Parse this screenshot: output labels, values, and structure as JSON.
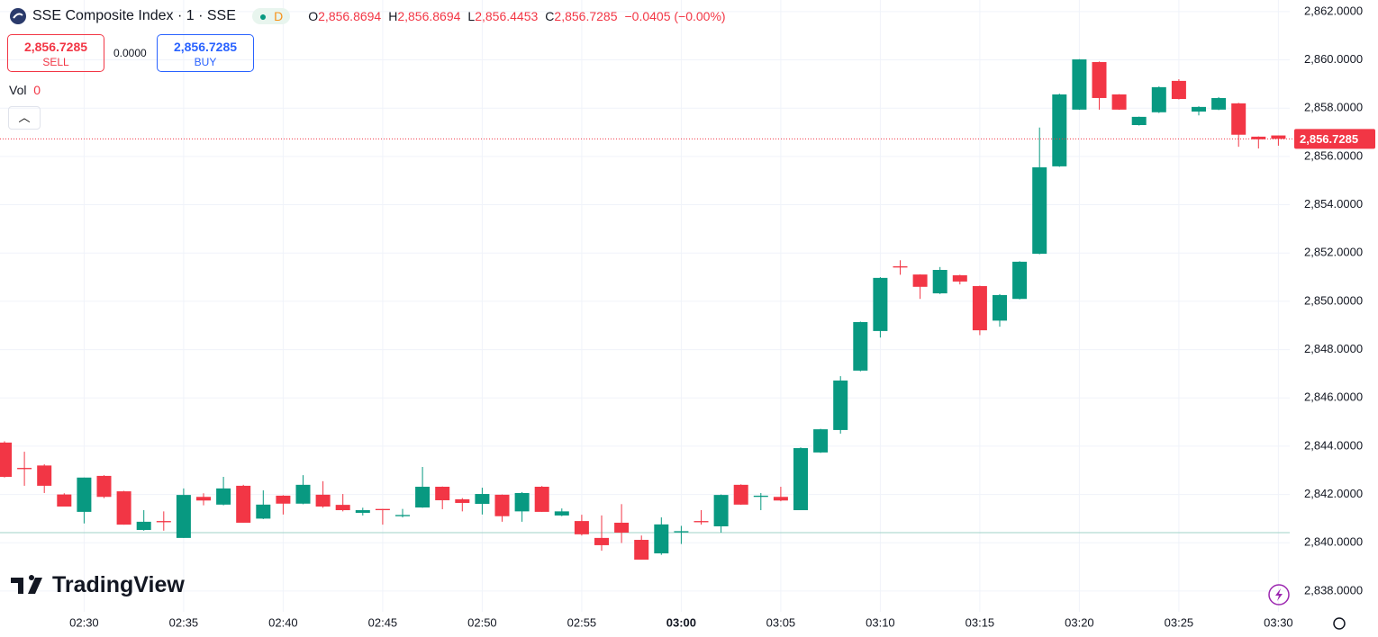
{
  "header": {
    "symbol": "SSE Composite Index · 1 · SSE",
    "badge": "D",
    "ohlc": [
      {
        "label": "O",
        "value": "2,856.8694"
      },
      {
        "label": "H",
        "value": "2,856.8694"
      },
      {
        "label": "L",
        "value": "2,856.4453"
      },
      {
        "label": "C",
        "value": "2,856.7285"
      }
    ],
    "change": "−0.0405 (−0.00%)"
  },
  "trade": {
    "sell_price": "2,856.7285",
    "sell": "SELL",
    "spread": "0.0000",
    "buy_price": "2,856.7285",
    "buy": "BUY"
  },
  "volume": {
    "label": "Vol",
    "value": "0"
  },
  "brand": "TradingView",
  "chart_data": {
    "type": "candlestick",
    "categories": [
      null,
      null,
      null,
      null,
      "02:30",
      null,
      null,
      null,
      null,
      "02:35",
      null,
      null,
      null,
      null,
      "02:40",
      null,
      null,
      null,
      null,
      "02:45",
      null,
      null,
      null,
      null,
      "02:50",
      null,
      null,
      null,
      null,
      "02:55",
      null,
      null,
      null,
      null,
      "03:00",
      null,
      null,
      null,
      null,
      "03:05",
      null,
      null,
      null,
      null,
      "03:10",
      null,
      null,
      null,
      null,
      "03:15",
      null,
      null,
      null,
      null,
      "03:20",
      null,
      null,
      null,
      null,
      "03:25",
      null,
      null,
      null,
      null,
      "03:30"
    ],
    "open": [
      2844.15,
      2843.1,
      2843.2,
      2842.0,
      2841.28,
      2842.77,
      2842.13,
      2840.53,
      2840.9,
      2840.2,
      2841.9,
      2841.58,
      2842.36,
      2841.0,
      2841.95,
      2841.62,
      2841.99,
      2841.57,
      2841.24,
      2841.4,
      2841.1,
      2841.46,
      2842.32,
      2841.8,
      2841.61,
      2841.99,
      2841.3,
      2842.32,
      2841.13,
      2840.9,
      2840.2,
      2840.83,
      2840.12,
      2839.56,
      2840.43,
      2840.9,
      2840.68,
      2842.4,
      2841.9,
      2841.9,
      2841.35,
      2843.74,
      2844.67,
      2847.13,
      2848.77,
      2851.45,
      2851.11,
      2850.33,
      2851.08,
      2850.63,
      2849.2,
      2850.1,
      2851.97,
      2855.59,
      2857.94,
      2859.91,
      2858.57,
      2857.3,
      2857.83,
      2859.13,
      2857.86,
      2857.94,
      2858.2,
      2856.82,
      2856.8694
    ],
    "high": [
      2844.2,
      2843.77,
      2843.25,
      2842.05,
      2842.7,
      2842.8,
      2842.15,
      2841.35,
      2841.3,
      2842.25,
      2842.05,
      2842.73,
      2842.4,
      2842.17,
      2841.97,
      2842.8,
      2842.55,
      2842.02,
      2841.45,
      2841.4,
      2841.4,
      2843.14,
      2842.33,
      2841.85,
      2842.28,
      2842.0,
      2842.1,
      2842.35,
      2841.42,
      2841.16,
      2841.13,
      2841.6,
      2840.3,
      2841.05,
      2840.7,
      2841.35,
      2842.0,
      2842.42,
      2842.06,
      2842.32,
      2843.95,
      2844.72,
      2846.9,
      2849.16,
      2851.0,
      2851.7,
      2851.12,
      2851.42,
      2851.1,
      2850.65,
      2850.3,
      2851.66,
      2857.2,
      2858.6,
      2860.03,
      2859.93,
      2858.58,
      2857.65,
      2858.9,
      2859.2,
      2858.08,
      2858.46,
      2858.22,
      2856.83,
      2856.8694
    ],
    "low": [
      2842.7,
      2842.36,
      2842.06,
      2841.5,
      2840.8,
      2841.85,
      2840.75,
      2840.5,
      2840.5,
      2840.2,
      2841.55,
      2841.55,
      2840.83,
      2840.98,
      2841.17,
      2841.6,
      2841.45,
      2841.3,
      2841.13,
      2840.75,
      2841.05,
      2841.45,
      2841.39,
      2841.3,
      2841.17,
      2840.87,
      2840.87,
      2841.28,
      2841.1,
      2840.3,
      2839.67,
      2839.99,
      2839.3,
      2839.5,
      2839.95,
      2840.75,
      2840.42,
      2841.57,
      2841.35,
      2841.72,
      2841.35,
      2843.72,
      2844.52,
      2847.1,
      2848.5,
      2851.1,
      2850.1,
      2850.3,
      2850.7,
      2848.6,
      2848.95,
      2850.08,
      2851.95,
      2855.57,
      2857.93,
      2857.94,
      2857.93,
      2857.28,
      2857.8,
      2858.36,
      2857.7,
      2857.92,
      2856.4,
      2856.33,
      2856.4453
    ],
    "close": [
      2842.73,
      2843.05,
      2842.36,
      2841.5,
      2842.7,
      2841.9,
      2840.75,
      2840.87,
      2840.85,
      2841.98,
      2841.75,
      2842.25,
      2840.83,
      2841.58,
      2841.62,
      2842.4,
      2841.5,
      2841.35,
      2841.35,
      2841.35,
      2841.15,
      2842.32,
      2841.76,
      2841.65,
      2842.02,
      2841.1,
      2842.06,
      2841.28,
      2841.3,
      2840.35,
      2839.9,
      2840.42,
      2839.3,
      2840.76,
      2840.48,
      2840.85,
      2841.98,
      2841.58,
      2841.95,
      2841.75,
      2843.92,
      2844.7,
      2846.72,
      2849.14,
      2850.97,
      2851.4,
      2850.6,
      2851.3,
      2850.82,
      2848.8,
      2850.26,
      2851.64,
      2855.55,
      2858.57,
      2860.02,
      2858.42,
      2857.94,
      2857.64,
      2858.87,
      2858.38,
      2858.05,
      2858.42,
      2856.9,
      2856.71,
      2856.7285
    ],
    "up_color": "#089981",
    "down_color": "#f23645",
    "ylim": [
      2837.14,
      2862.48
    ],
    "yticks": [
      {
        "value": 2838,
        "label": "2,838.0000"
      },
      {
        "value": 2840,
        "label": "2,840.0000"
      },
      {
        "value": 2842,
        "label": "2,842.0000"
      },
      {
        "value": 2844,
        "label": "2,844.0000"
      },
      {
        "value": 2846,
        "label": "2,846.0000"
      },
      {
        "value": 2848,
        "label": "2,848.0000"
      },
      {
        "value": 2850,
        "label": "2,850.0000"
      },
      {
        "value": 2852,
        "label": "2,852.0000"
      },
      {
        "value": 2854,
        "label": "2,854.0000"
      },
      {
        "value": 2856,
        "label": "2,856.0000"
      },
      {
        "value": 2858,
        "label": "2,858.0000"
      },
      {
        "value": 2860,
        "label": "2,860.0000"
      },
      {
        "value": 2862,
        "label": "2,862.0000"
      }
    ],
    "last_price": 2856.7285,
    "last_price_label": "2,856.7285",
    "reference_line": 2840.42,
    "grid": true
  }
}
